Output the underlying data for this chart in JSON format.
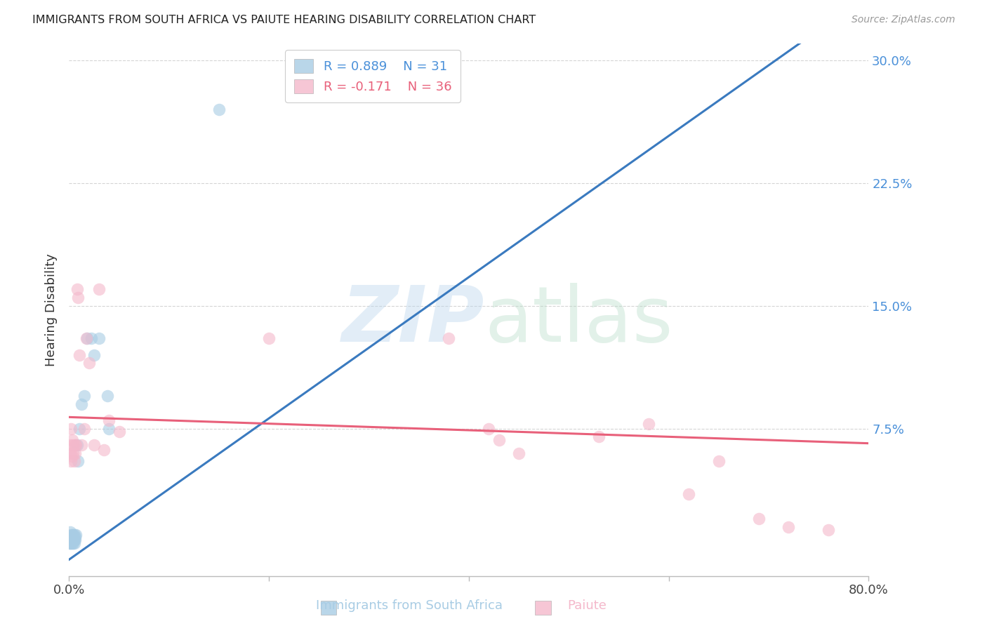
{
  "title": "IMMIGRANTS FROM SOUTH AFRICA VS PAIUTE HEARING DISABILITY CORRELATION CHART",
  "source": "Source: ZipAtlas.com",
  "xlabel_blue": "Immigrants from South Africa",
  "xlabel_pink": "Paiute",
  "ylabel": "Hearing Disability",
  "legend_blue_r": "R = 0.889",
  "legend_blue_n": "N = 31",
  "legend_pink_r": "R = -0.171",
  "legend_pink_n": "N = 36",
  "blue_scatter_color": "#a8cce4",
  "pink_scatter_color": "#f4b8cb",
  "blue_line_color": "#3a7abf",
  "pink_line_color": "#e8607a",
  "blue_legend_color": "#4a90d9",
  "pink_legend_color": "#e8607a",
  "xlim_min": 0.0,
  "xlim_max": 0.8,
  "ylim_min": -0.015,
  "ylim_max": 0.31,
  "ytick_positions": [
    0.075,
    0.15,
    0.225,
    0.3
  ],
  "ytick_labels": [
    "7.5%",
    "15.0%",
    "22.5%",
    "30.0%"
  ],
  "xtick_positions": [
    0.0,
    0.2,
    0.4,
    0.6,
    0.8
  ],
  "xtick_labels": [
    "0.0%",
    "",
    "",
    "",
    "80.0%"
  ],
  "blue_scatter_x": [
    0.0005,
    0.001,
    0.001,
    0.001,
    0.002,
    0.002,
    0.002,
    0.003,
    0.003,
    0.003,
    0.004,
    0.004,
    0.004,
    0.005,
    0.005,
    0.005,
    0.006,
    0.006,
    0.007,
    0.008,
    0.009,
    0.01,
    0.012,
    0.015,
    0.018,
    0.022,
    0.025,
    0.03,
    0.038,
    0.04,
    0.15
  ],
  "blue_scatter_y": [
    0.005,
    0.005,
    0.008,
    0.012,
    0.005,
    0.008,
    0.01,
    0.005,
    0.008,
    0.01,
    0.005,
    0.007,
    0.01,
    0.005,
    0.007,
    0.01,
    0.007,
    0.009,
    0.01,
    0.065,
    0.055,
    0.075,
    0.09,
    0.095,
    0.13,
    0.13,
    0.12,
    0.13,
    0.095,
    0.075,
    0.27
  ],
  "pink_scatter_x": [
    0.001,
    0.001,
    0.002,
    0.002,
    0.003,
    0.003,
    0.004,
    0.004,
    0.005,
    0.006,
    0.006,
    0.007,
    0.008,
    0.009,
    0.01,
    0.012,
    0.015,
    0.017,
    0.02,
    0.025,
    0.03,
    0.035,
    0.04,
    0.05,
    0.2,
    0.38,
    0.42,
    0.43,
    0.45,
    0.53,
    0.58,
    0.62,
    0.65,
    0.69,
    0.72,
    0.76
  ],
  "pink_scatter_y": [
    0.06,
    0.065,
    0.055,
    0.075,
    0.058,
    0.068,
    0.06,
    0.065,
    0.055,
    0.06,
    0.065,
    0.065,
    0.16,
    0.155,
    0.12,
    0.065,
    0.075,
    0.13,
    0.115,
    0.065,
    0.16,
    0.062,
    0.08,
    0.073,
    0.13,
    0.13,
    0.075,
    0.068,
    0.06,
    0.07,
    0.078,
    0.035,
    0.055,
    0.02,
    0.015,
    0.013
  ],
  "background_color": "#ffffff",
  "grid_color": "#d5d5d5",
  "blue_line_x_start": 0.0,
  "blue_line_x_end": 0.8,
  "blue_line_y_start": -0.005,
  "blue_line_y_end": 0.34,
  "pink_line_x_start": 0.0,
  "pink_line_x_end": 0.8,
  "pink_line_y_start": 0.082,
  "pink_line_y_end": 0.066
}
